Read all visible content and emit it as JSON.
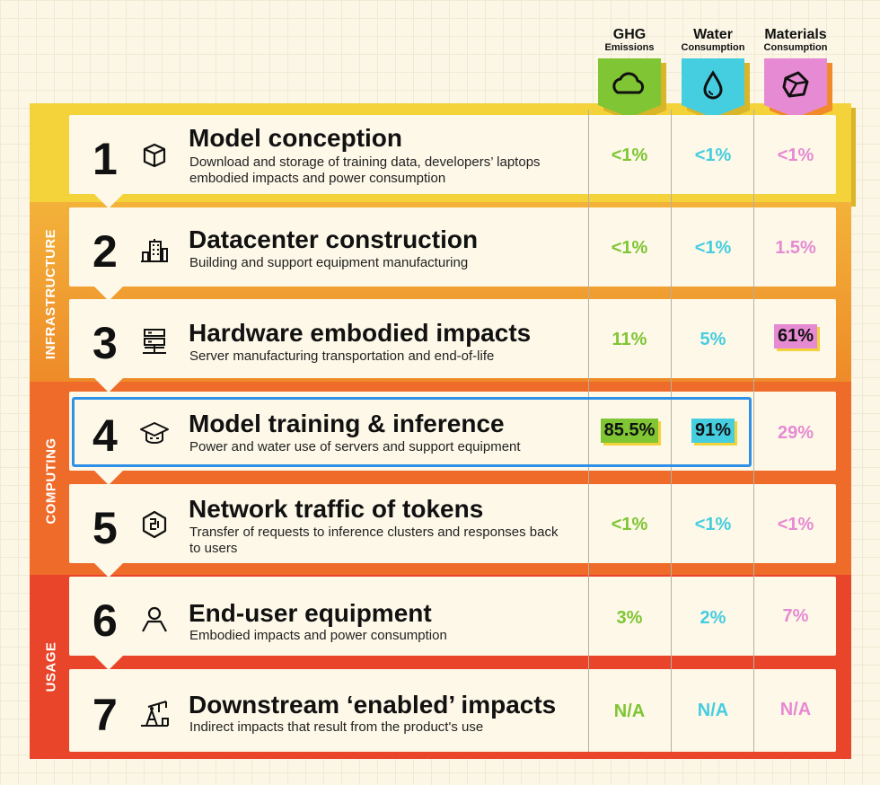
{
  "columns": [
    {
      "name": "GHG",
      "sub": "Emissions",
      "icon": "cloud-icon",
      "color": "#7fc534"
    },
    {
      "name": "Water",
      "sub": "Consumption",
      "icon": "water-drop-icon",
      "color": "#45cde0"
    },
    {
      "name": "Materials",
      "sub": "Consumption",
      "icon": "cube-icon",
      "color": "#e68ad3"
    }
  ],
  "side_labels": [
    "INFRASTRUCTURE",
    "COMPUTING",
    "USAGE"
  ],
  "rows": [
    {
      "num": "1",
      "icon": "box-icon",
      "title": "Model conception",
      "desc": "Download and storage of training data, developers’ laptops embodied impacts and power consumption",
      "ghg": "<1%",
      "water": "<1%",
      "materials": "<1%"
    },
    {
      "num": "2",
      "icon": "building-icon",
      "title": "Datacenter construction",
      "desc": "Building and support equipment manufacturing",
      "ghg": "<1%",
      "water": "<1%",
      "materials": "1.5%"
    },
    {
      "num": "3",
      "icon": "server-icon",
      "title": "Hardware embodied impacts",
      "desc": "Server manufacturing transportation and end-of-life",
      "ghg": "11%",
      "water": "5%",
      "materials": "61%"
    },
    {
      "num": "4",
      "icon": "graduation-cap-icon",
      "title": "Model training & inference",
      "desc": "Power and water use of servers and support equipment",
      "ghg": "85.5%",
      "water": "91%",
      "materials": "29%"
    },
    {
      "num": "5",
      "icon": "network-icon",
      "title": "Network traffic of tokens",
      "desc": "Transfer of requests to inference clusters and responses back to users",
      "ghg": "<1%",
      "water": "<1%",
      "materials": "<1%"
    },
    {
      "num": "6",
      "icon": "user-icon",
      "title": "End-user equipment",
      "desc": "Embodied impacts and power consumption",
      "ghg": "3%",
      "water": "2%",
      "materials": "7%"
    },
    {
      "num": "7",
      "icon": "oil-pump-icon",
      "title": "Downstream ‘enabled’ impacts",
      "desc": "Indirect impacts that result from the product's use",
      "ghg": "N/A",
      "water": "N/A",
      "materials": "N/A"
    }
  ]
}
